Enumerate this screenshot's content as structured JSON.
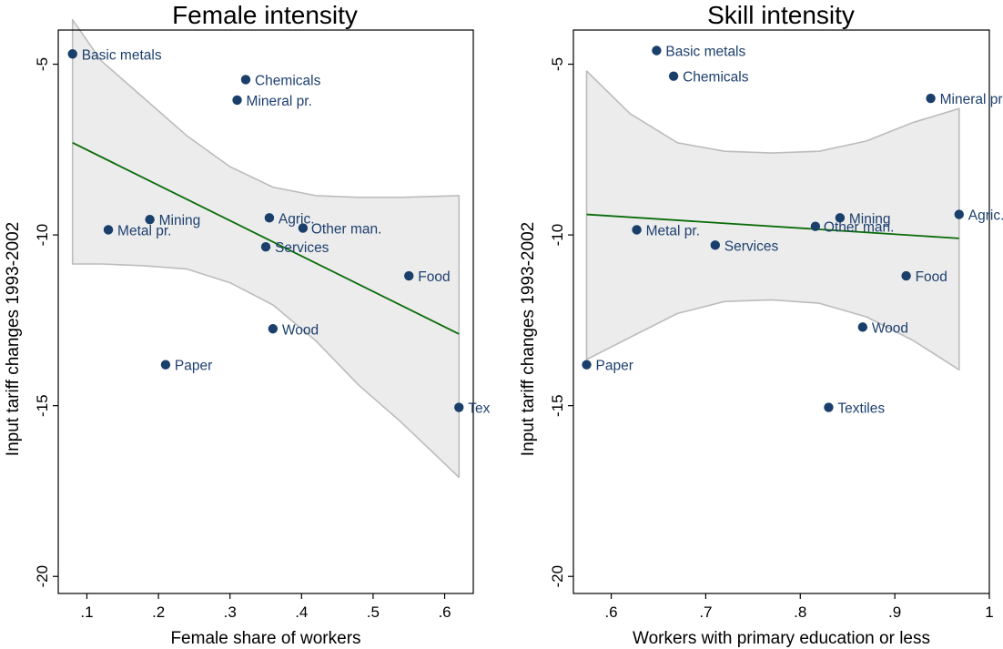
{
  "chart_data": [
    {
      "type": "scatter",
      "title": "Female intensity",
      "xlabel": "Female share of workers",
      "ylabel": "Input tariff changes 1993-2002",
      "xlim": [
        0.06,
        0.64
      ],
      "ylim": [
        -20.5,
        -4
      ],
      "xticks": [
        0.1,
        0.2,
        0.3,
        0.4,
        0.5,
        0.6
      ],
      "xtick_labels": [
        ".1",
        ".2",
        ".3",
        ".4",
        ".5",
        ".6"
      ],
      "yticks": [
        -5,
        -10,
        -15,
        -20
      ],
      "ytick_labels": [
        "-5",
        "-10",
        "-15",
        "-20"
      ],
      "point_color": "#1a3f6b",
      "fit_color": "#0a6b0a",
      "ci_fill": "#ececec",
      "ci_stroke": "#bcbcbc",
      "grid": false,
      "points": [
        {
          "label": "Basic metals",
          "x": 0.08,
          "y": -4.7
        },
        {
          "label": "Chemicals",
          "x": 0.322,
          "y": -5.45
        },
        {
          "label": "Mineral pr.",
          "x": 0.31,
          "y": -6.05
        },
        {
          "label": "Mining",
          "x": 0.188,
          "y": -9.55
        },
        {
          "label": "Metal pr.",
          "x": 0.13,
          "y": -9.85
        },
        {
          "label": "Agric.",
          "x": 0.355,
          "y": -9.5
        },
        {
          "label": "Other man.",
          "x": 0.402,
          "y": -9.8
        },
        {
          "label": "Services",
          "x": 0.35,
          "y": -10.35
        },
        {
          "label": "Food",
          "x": 0.55,
          "y": -11.2
        },
        {
          "label": "Wood",
          "x": 0.36,
          "y": -12.75
        },
        {
          "label": "Paper",
          "x": 0.21,
          "y": -13.8
        },
        {
          "label": "Tex",
          "x": 0.62,
          "y": -15.05
        }
      ],
      "fit": {
        "x": [
          0.08,
          0.62
        ],
        "y": [
          -7.3,
          -12.9
        ]
      },
      "ci": {
        "x": [
          0.08,
          0.12,
          0.18,
          0.24,
          0.3,
          0.36,
          0.42,
          0.48,
          0.54,
          0.62
        ],
        "upper": [
          -3.7,
          -4.9,
          -6.0,
          -7.1,
          -8.0,
          -8.6,
          -8.85,
          -8.9,
          -8.9,
          -8.85
        ],
        "lower": [
          -10.85,
          -10.85,
          -10.9,
          -11.0,
          -11.4,
          -12.05,
          -13.1,
          -14.4,
          -15.5,
          -17.1
        ]
      }
    },
    {
      "type": "scatter",
      "title": "Skill intensity",
      "xlabel": "Workers with primary education or less",
      "ylabel": "Input tariff changes 1993-2002",
      "xlim": [
        0.56,
        1.0
      ],
      "ylim": [
        -20.5,
        -4
      ],
      "xticks": [
        0.6,
        0.7,
        0.8,
        0.9,
        1.0
      ],
      "xtick_labels": [
        ".6",
        ".7",
        ".8",
        ".9",
        "1"
      ],
      "yticks": [
        -5,
        -10,
        -15,
        -20
      ],
      "ytick_labels": [
        "-5",
        "-10",
        "-15",
        "-20"
      ],
      "point_color": "#1a3f6b",
      "fit_color": "#0a6b0a",
      "ci_fill": "#ececec",
      "ci_stroke": "#bcbcbc",
      "grid": false,
      "points": [
        {
          "label": "Basic metals",
          "x": 0.648,
          "y": -4.6
        },
        {
          "label": "Chemicals",
          "x": 0.666,
          "y": -5.35
        },
        {
          "label": "Mineral pr.",
          "x": 0.938,
          "y": -6.0
        },
        {
          "label": "Agric.",
          "x": 0.968,
          "y": -9.4
        },
        {
          "label": "Mining",
          "x": 0.842,
          "y": -9.5
        },
        {
          "label": "Other man.",
          "x": 0.816,
          "y": -9.75
        },
        {
          "label": "Metal pr.",
          "x": 0.627,
          "y": -9.85
        },
        {
          "label": "Services",
          "x": 0.71,
          "y": -10.3
        },
        {
          "label": "Food",
          "x": 0.912,
          "y": -11.2
        },
        {
          "label": "Wood",
          "x": 0.866,
          "y": -12.7
        },
        {
          "label": "Paper",
          "x": 0.574,
          "y": -13.8
        },
        {
          "label": "Textiles",
          "x": 0.83,
          "y": -15.05
        }
      ],
      "fit": {
        "x": [
          0.574,
          0.968
        ],
        "y": [
          -9.4,
          -10.1
        ]
      },
      "ci": {
        "x": [
          0.574,
          0.62,
          0.67,
          0.72,
          0.77,
          0.82,
          0.87,
          0.92,
          0.968
        ],
        "upper": [
          -5.2,
          -6.45,
          -7.3,
          -7.55,
          -7.6,
          -7.55,
          -7.25,
          -6.7,
          -6.3
        ],
        "lower": [
          -13.65,
          -13.0,
          -12.3,
          -11.95,
          -11.9,
          -12.0,
          -12.4,
          -13.1,
          -13.95
        ]
      }
    }
  ]
}
